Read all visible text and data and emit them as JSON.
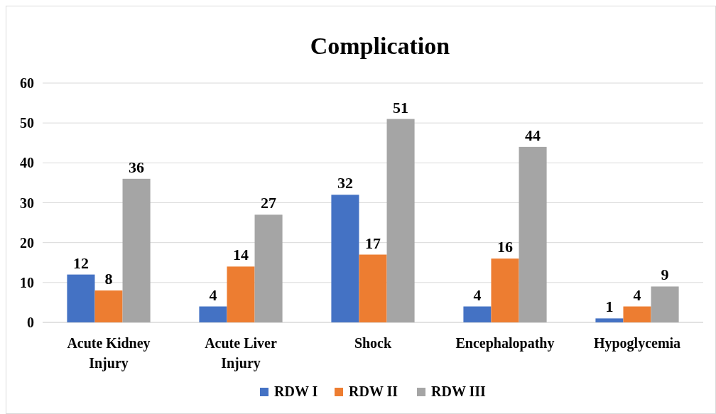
{
  "chart_data": {
    "type": "bar",
    "title": "Complication",
    "categories": [
      "Acute Kidney Injury",
      "Acute Liver Injury",
      "Shock",
      "Encephalopathy",
      "Hypoglycemia"
    ],
    "series": [
      {
        "name": "RDW I",
        "color": "#4472c4",
        "values": [
          12,
          4,
          32,
          4,
          1
        ]
      },
      {
        "name": "RDW II",
        "color": "#ed7d31",
        "values": [
          8,
          14,
          17,
          16,
          4
        ]
      },
      {
        "name": "RDW III",
        "color": "#a5a5a5",
        "values": [
          36,
          27,
          51,
          44,
          9
        ]
      }
    ],
    "ylim": [
      0,
      60
    ],
    "yticks": [
      0,
      10,
      20,
      30,
      40,
      50,
      60
    ],
    "grid": "y",
    "legend": "bottom",
    "data_labels": true
  }
}
